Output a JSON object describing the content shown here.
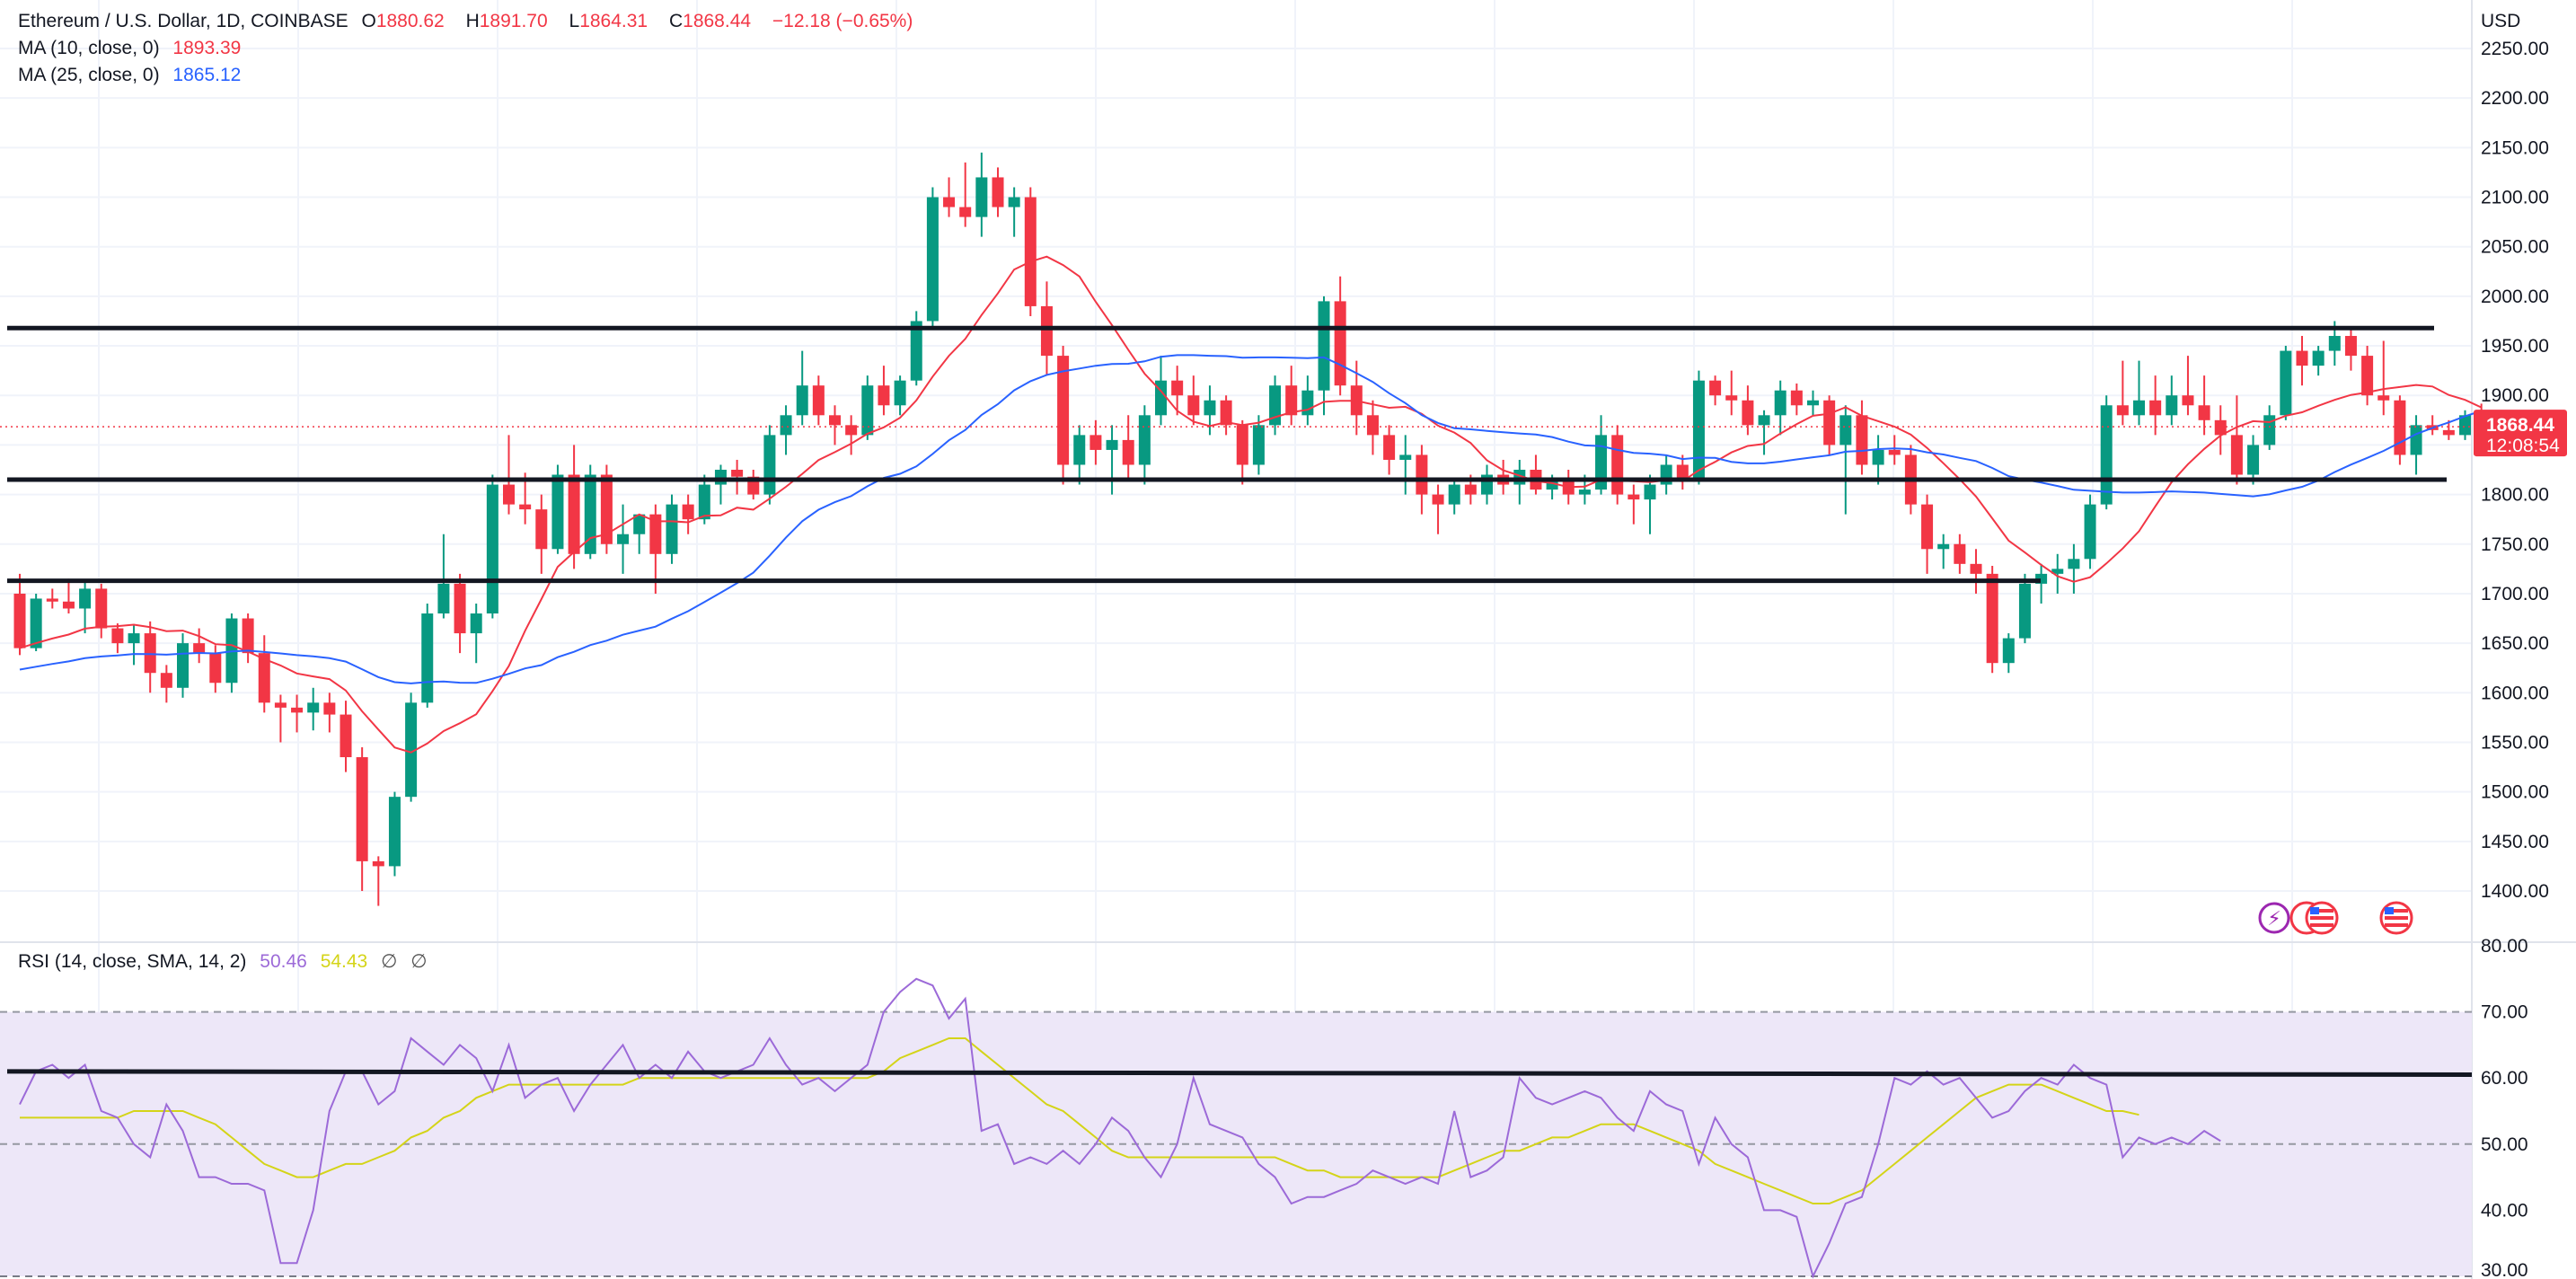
{
  "header": {
    "symbol": "Ethereum / U.S. Dollar, 1D, COINBASE",
    "open_label": "O",
    "open": "1880.62",
    "high_label": "H",
    "high": "1891.70",
    "low_label": "L",
    "low": "1864.31",
    "close_label": "C",
    "close": "1868.44",
    "change": "−12.18 (−0.65%)"
  },
  "indicators": {
    "ma10": {
      "label": "MA (10, close, 0)",
      "value": "1893.39",
      "color": "#f23645"
    },
    "ma25": {
      "label": "MA (25, close, 0)",
      "value": "1865.12",
      "color": "#2962ff"
    },
    "rsi": {
      "label": "RSI (14, close, SMA, 14, 2)",
      "value": "50.46",
      "sma_value": "54.43",
      "eye1": "∅",
      "eye2": "∅",
      "color": "#9c6ad8",
      "sma_color": "#d4d418"
    }
  },
  "price_scale": {
    "currency": "USD",
    "current_price": "1868.44",
    "countdown": "12:08:54"
  },
  "colors": {
    "up": "#089981",
    "down": "#f23645",
    "rsi_band": "#ede7f8"
  },
  "chart_data": [
    {
      "type": "candlestick",
      "title": "Ethereum / U.S. Dollar, 1D, COINBASE",
      "ylabel": "USD",
      "ylim": [
        1370,
        2270
      ],
      "yticks": [
        "2250.00",
        "2200.00",
        "2150.00",
        "2100.00",
        "2050.00",
        "2000.00",
        "1950.00",
        "1900.00",
        "1850.00",
        "1800.00",
        "1750.00",
        "1700.00",
        "1650.00",
        "1600.00",
        "1550.00",
        "1500.00",
        "1450.00",
        "1400.00"
      ],
      "grid": true,
      "ohlc": [
        [
          1700,
          1720,
          1638,
          1645
        ],
        [
          1645,
          1700,
          1642,
          1695
        ],
        [
          1695,
          1705,
          1685,
          1692
        ],
        [
          1692,
          1715,
          1680,
          1685
        ],
        [
          1685,
          1712,
          1660,
          1705
        ],
        [
          1705,
          1710,
          1655,
          1665
        ],
        [
          1665,
          1670,
          1640,
          1650
        ],
        [
          1650,
          1668,
          1628,
          1660
        ],
        [
          1660,
          1672,
          1600,
          1620
        ],
        [
          1620,
          1628,
          1590,
          1605
        ],
        [
          1605,
          1660,
          1595,
          1650
        ],
        [
          1650,
          1665,
          1630,
          1640
        ],
        [
          1640,
          1648,
          1600,
          1610
        ],
        [
          1610,
          1680,
          1600,
          1675
        ],
        [
          1675,
          1680,
          1630,
          1640
        ],
        [
          1640,
          1658,
          1580,
          1590
        ],
        [
          1590,
          1598,
          1550,
          1585
        ],
        [
          1585,
          1598,
          1560,
          1580
        ],
        [
          1580,
          1605,
          1562,
          1590
        ],
        [
          1590,
          1600,
          1560,
          1578
        ],
        [
          1578,
          1592,
          1520,
          1535
        ],
        [
          1535,
          1545,
          1400,
          1430
        ],
        [
          1430,
          1435,
          1385,
          1425
        ],
        [
          1425,
          1500,
          1415,
          1495
        ],
        [
          1495,
          1600,
          1490,
          1590
        ],
        [
          1590,
          1690,
          1585,
          1680
        ],
        [
          1680,
          1760,
          1675,
          1710
        ],
        [
          1710,
          1720,
          1640,
          1660
        ],
        [
          1660,
          1690,
          1630,
          1680
        ],
        [
          1680,
          1820,
          1675,
          1810
        ],
        [
          1810,
          1860,
          1780,
          1790
        ],
        [
          1790,
          1822,
          1770,
          1785
        ],
        [
          1785,
          1800,
          1720,
          1745
        ],
        [
          1745,
          1830,
          1740,
          1820
        ],
        [
          1820,
          1850,
          1725,
          1740
        ],
        [
          1740,
          1830,
          1735,
          1820
        ],
        [
          1820,
          1830,
          1740,
          1750
        ],
        [
          1750,
          1790,
          1720,
          1760
        ],
        [
          1760,
          1780,
          1740,
          1780
        ],
        [
          1780,
          1790,
          1700,
          1740
        ],
        [
          1740,
          1800,
          1730,
          1790
        ],
        [
          1790,
          1800,
          1760,
          1775
        ],
        [
          1775,
          1820,
          1770,
          1810
        ],
        [
          1810,
          1830,
          1790,
          1825
        ],
        [
          1825,
          1835,
          1800,
          1818
        ],
        [
          1818,
          1825,
          1795,
          1800
        ],
        [
          1800,
          1870,
          1790,
          1860
        ],
        [
          1860,
          1890,
          1840,
          1880
        ],
        [
          1880,
          1945,
          1870,
          1910
        ],
        [
          1910,
          1920,
          1870,
          1880
        ],
        [
          1880,
          1890,
          1850,
          1870
        ],
        [
          1870,
          1880,
          1840,
          1860
        ],
        [
          1860,
          1920,
          1855,
          1910
        ],
        [
          1910,
          1930,
          1880,
          1890
        ],
        [
          1890,
          1920,
          1880,
          1915
        ],
        [
          1915,
          1985,
          1910,
          1975
        ],
        [
          1975,
          2110,
          1970,
          2100
        ],
        [
          2100,
          2120,
          2080,
          2090
        ],
        [
          2090,
          2135,
          2070,
          2080
        ],
        [
          2080,
          2145,
          2060,
          2120
        ],
        [
          2120,
          2130,
          2080,
          2090
        ],
        [
          2090,
          2110,
          2060,
          2100
        ],
        [
          2100,
          2110,
          1980,
          1990
        ],
        [
          1990,
          2015,
          1920,
          1940
        ],
        [
          1940,
          1950,
          1810,
          1830
        ],
        [
          1830,
          1870,
          1810,
          1860
        ],
        [
          1860,
          1875,
          1830,
          1845
        ],
        [
          1845,
          1870,
          1800,
          1855
        ],
        [
          1855,
          1880,
          1815,
          1830
        ],
        [
          1830,
          1890,
          1810,
          1880
        ],
        [
          1880,
          1940,
          1870,
          1915
        ],
        [
          1915,
          1930,
          1880,
          1900
        ],
        [
          1900,
          1920,
          1870,
          1880
        ],
        [
          1880,
          1910,
          1860,
          1895
        ],
        [
          1895,
          1900,
          1860,
          1870
        ],
        [
          1870,
          1875,
          1810,
          1830
        ],
        [
          1830,
          1880,
          1820,
          1870
        ],
        [
          1870,
          1920,
          1860,
          1910
        ],
        [
          1910,
          1930,
          1870,
          1880
        ],
        [
          1880,
          1920,
          1870,
          1905
        ],
        [
          1905,
          2000,
          1880,
          1995
        ],
        [
          1995,
          2020,
          1900,
          1910
        ],
        [
          1910,
          1935,
          1860,
          1880
        ],
        [
          1880,
          1895,
          1840,
          1860
        ],
        [
          1860,
          1870,
          1820,
          1835
        ],
        [
          1835,
          1860,
          1800,
          1840
        ],
        [
          1840,
          1850,
          1780,
          1800
        ],
        [
          1800,
          1810,
          1760,
          1790
        ],
        [
          1790,
          1815,
          1780,
          1810
        ],
        [
          1810,
          1820,
          1790,
          1800
        ],
        [
          1800,
          1830,
          1790,
          1820
        ],
        [
          1820,
          1835,
          1800,
          1810
        ],
        [
          1810,
          1835,
          1790,
          1825
        ],
        [
          1825,
          1840,
          1800,
          1805
        ],
        [
          1805,
          1820,
          1795,
          1815
        ],
        [
          1815,
          1825,
          1790,
          1800
        ],
        [
          1800,
          1820,
          1790,
          1805
        ],
        [
          1805,
          1880,
          1800,
          1860
        ],
        [
          1860,
          1870,
          1790,
          1800
        ],
        [
          1800,
          1810,
          1770,
          1795
        ],
        [
          1795,
          1820,
          1760,
          1810
        ],
        [
          1810,
          1840,
          1800,
          1830
        ],
        [
          1830,
          1840,
          1805,
          1815
        ],
        [
          1815,
          1925,
          1810,
          1915
        ],
        [
          1915,
          1920,
          1890,
          1900
        ],
        [
          1900,
          1925,
          1880,
          1895
        ],
        [
          1895,
          1910,
          1860,
          1870
        ],
        [
          1870,
          1885,
          1840,
          1880
        ],
        [
          1880,
          1915,
          1860,
          1905
        ],
        [
          1905,
          1912,
          1880,
          1890
        ],
        [
          1890,
          1905,
          1880,
          1895
        ],
        [
          1895,
          1900,
          1840,
          1850
        ],
        [
          1850,
          1890,
          1780,
          1880
        ],
        [
          1880,
          1895,
          1820,
          1830
        ],
        [
          1830,
          1860,
          1810,
          1845
        ],
        [
          1845,
          1860,
          1830,
          1840
        ],
        [
          1840,
          1850,
          1780,
          1790
        ],
        [
          1790,
          1800,
          1720,
          1745
        ],
        [
          1745,
          1760,
          1725,
          1750
        ],
        [
          1750,
          1760,
          1720,
          1730
        ],
        [
          1730,
          1745,
          1700,
          1720
        ],
        [
          1720,
          1728,
          1620,
          1630
        ],
        [
          1630,
          1660,
          1620,
          1655
        ],
        [
          1655,
          1720,
          1650,
          1710
        ],
        [
          1710,
          1730,
          1690,
          1720
        ],
        [
          1720,
          1740,
          1700,
          1725
        ],
        [
          1725,
          1750,
          1700,
          1735
        ],
        [
          1735,
          1800,
          1725,
          1790
        ],
        [
          1790,
          1900,
          1785,
          1890
        ],
        [
          1890,
          1935,
          1870,
          1880
        ],
        [
          1880,
          1935,
          1870,
          1895
        ],
        [
          1895,
          1920,
          1860,
          1880
        ],
        [
          1880,
          1920,
          1870,
          1900
        ],
        [
          1900,
          1940,
          1880,
          1890
        ],
        [
          1890,
          1920,
          1860,
          1875
        ],
        [
          1875,
          1890,
          1840,
          1860
        ],
        [
          1860,
          1900,
          1810,
          1820
        ],
        [
          1820,
          1860,
          1810,
          1850
        ],
        [
          1850,
          1890,
          1845,
          1880
        ],
        [
          1880,
          1950,
          1875,
          1945
        ],
        [
          1945,
          1960,
          1910,
          1930
        ],
        [
          1930,
          1950,
          1920,
          1945
        ],
        [
          1945,
          1975,
          1930,
          1960
        ],
        [
          1960,
          1970,
          1925,
          1940
        ],
        [
          1940,
          1950,
          1890,
          1900
        ],
        [
          1900,
          1955,
          1880,
          1895
        ],
        [
          1895,
          1900,
          1830,
          1840
        ],
        [
          1840,
          1880,
          1820,
          1870
        ],
        [
          1870,
          1880,
          1860,
          1865
        ],
        [
          1865,
          1875,
          1855,
          1860
        ],
        [
          1860,
          1885,
          1855,
          1880
        ],
        [
          1880.62,
          1891.7,
          1864.31,
          1868.44
        ]
      ],
      "horizontal_levels": [
        1968,
        1815,
        1713
      ],
      "last_price": 1868.44
    },
    {
      "type": "line",
      "title": "RSI (14, close, SMA, 14, 2)",
      "ylim": [
        30,
        80
      ],
      "yticks": [
        "80.00",
        "70.00",
        "60.00",
        "50.00",
        "40.00",
        "30.00"
      ],
      "band": [
        30,
        70
      ],
      "dashed_levels": [
        70,
        50
      ],
      "horizontal_levels": [
        61,
        60.5
      ],
      "series": [
        {
          "name": "RSI",
          "values": [
            56,
            61,
            62,
            60,
            62,
            55,
            54,
            50,
            48,
            56,
            52,
            45,
            45,
            44,
            44,
            43,
            32,
            32,
            40,
            55,
            61,
            61,
            56,
            58,
            66,
            64,
            62,
            65,
            63,
            58,
            65,
            57,
            59,
            60,
            55,
            59,
            62,
            65,
            60,
            62,
            60,
            64,
            61,
            60,
            61,
            62,
            66,
            62,
            59,
            60,
            58,
            60,
            62,
            70,
            73,
            75,
            74,
            69,
            72,
            52,
            53,
            47,
            48,
            47,
            49,
            47,
            50,
            54,
            52,
            48,
            45,
            50,
            60,
            53,
            52,
            51,
            47,
            45,
            41,
            42,
            42,
            43,
            44,
            46,
            45,
            44,
            45,
            44,
            55,
            45,
            46,
            48,
            60,
            57,
            56,
            57,
            58,
            57,
            54,
            52,
            58,
            56,
            55,
            47,
            54,
            50,
            48,
            40,
            40,
            39,
            30,
            35,
            41,
            42,
            50,
            60,
            59,
            61,
            59,
            60,
            57,
            54,
            55,
            58,
            60,
            59,
            62,
            60,
            59,
            48,
            51,
            50,
            51,
            50,
            52,
            50.46
          ]
        },
        {
          "name": "RSI-based MA",
          "values": [
            54,
            54,
            54,
            54,
            54,
            54,
            54,
            55,
            55,
            55,
            55,
            54,
            53,
            51,
            49,
            47,
            46,
            45,
            45,
            46,
            47,
            47,
            48,
            49,
            51,
            52,
            54,
            55,
            57,
            58,
            59,
            59,
            59,
            59,
            59,
            59,
            59,
            59,
            60,
            60,
            60,
            60,
            60,
            60,
            60,
            60,
            60,
            60,
            60,
            60,
            60,
            60,
            60,
            61,
            63,
            64,
            65,
            66,
            66,
            64,
            62,
            60,
            58,
            56,
            55,
            53,
            51,
            49,
            48,
            48,
            48,
            48,
            48,
            48,
            48,
            48,
            48,
            48,
            47,
            46,
            46,
            45,
            45,
            45,
            45,
            45,
            45,
            45,
            46,
            47,
            48,
            49,
            49,
            50,
            51,
            51,
            52,
            53,
            53,
            53,
            52,
            51,
            50,
            49,
            47,
            46,
            45,
            44,
            43,
            42,
            41,
            41,
            42,
            43,
            45,
            47,
            49,
            51,
            53,
            55,
            57,
            58,
            59,
            59,
            59,
            58,
            57,
            56,
            55,
            55,
            54.43
          ]
        }
      ]
    }
  ]
}
